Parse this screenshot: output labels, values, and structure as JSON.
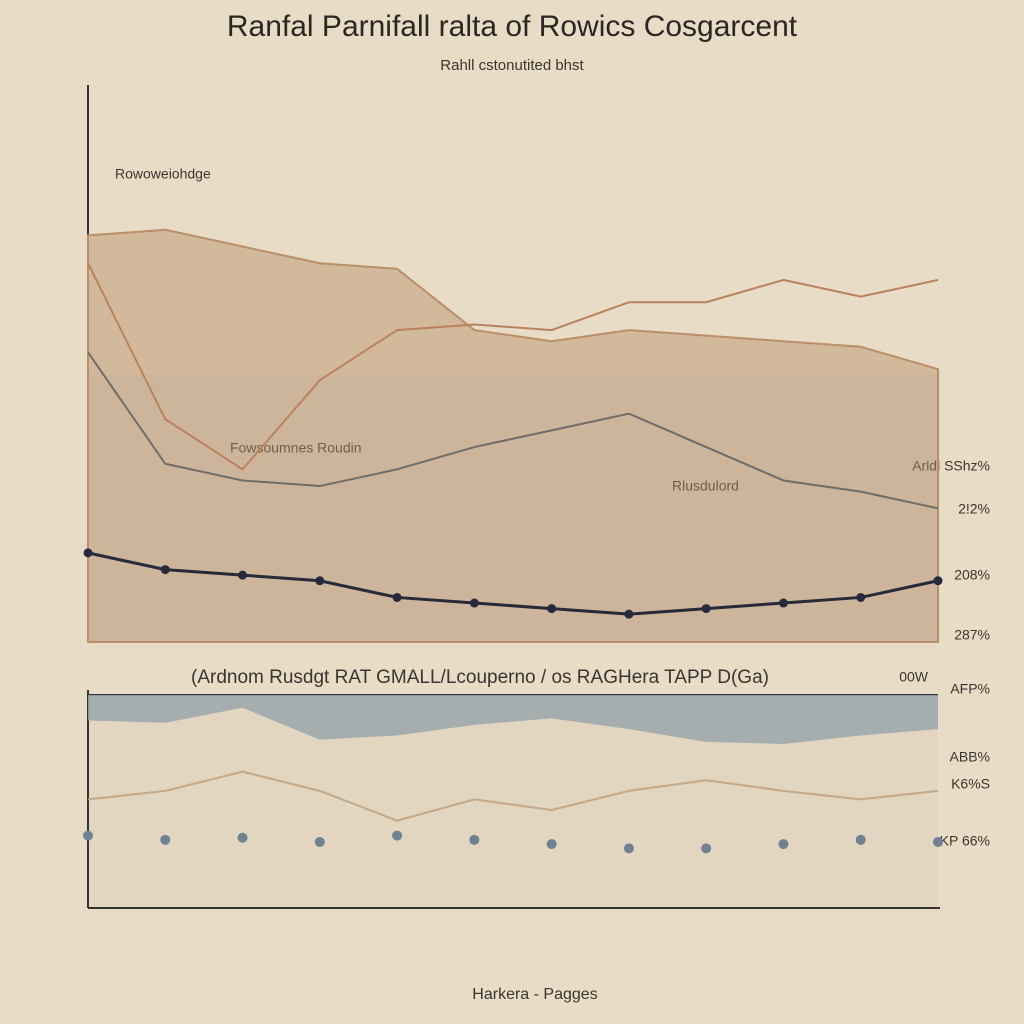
{
  "chart_data": [
    {
      "type": "line",
      "title": "Ranfal Parnifall ralta of Rowics Cosgarcent",
      "subtitle": "Rahll cstonutited bhst",
      "annotations": [
        "Rowoweiohdge",
        "Fowsoumnes Roudin",
        "Rlusdulord",
        "Arldl SShz%",
        "2!2%",
        "208%",
        "287%"
      ],
      "categories": [
        null,
        null,
        null,
        null,
        null,
        null,
        null,
        null,
        null,
        null,
        null,
        null
      ],
      "ylim": [
        0,
        100
      ],
      "series": [
        {
          "kind": "area",
          "color": "#b98f68",
          "values": [
            73,
            74,
            71,
            68,
            67,
            56,
            54,
            56,
            55,
            54,
            53,
            49
          ]
        },
        {
          "kind": "line",
          "color": "#b9825c",
          "values": [
            68,
            40,
            31,
            47,
            56,
            57,
            56,
            61,
            61,
            65,
            62,
            65
          ]
        },
        {
          "kind": "line",
          "color": "#6f6d6a",
          "values": [
            52,
            32,
            29,
            28,
            31,
            35,
            38,
            41,
            35,
            29,
            27,
            24
          ]
        },
        {
          "kind": "line",
          "color": "#262a3a",
          "values": [
            16,
            13,
            12,
            11,
            8,
            7,
            6,
            5,
            6,
            7,
            8,
            11
          ]
        }
      ]
    },
    {
      "type": "line",
      "title": "(Ardnom Rusdgt RAT GMALL/Lcouperno / os RAGHera TAPP D(Ga)",
      "xlabel": "Harkera - Pagges",
      "annotations": [
        "00W",
        "AFP%",
        "ABB%",
        "K6%S",
        "KP 66%"
      ],
      "categories": [
        null,
        null,
        null,
        null,
        null,
        null,
        null,
        null,
        null,
        null,
        null,
        null
      ],
      "ylim": [
        0,
        100
      ],
      "series": [
        {
          "kind": "band",
          "color": "#9aa6ab",
          "values": [
            88,
            87,
            94,
            79,
            81,
            86,
            89,
            84,
            78,
            77,
            81,
            84
          ]
        },
        {
          "kind": "line",
          "color": "#c4a888",
          "values": [
            51,
            55,
            64,
            55,
            41,
            51,
            46,
            55,
            60,
            55,
            51,
            55
          ]
        },
        {
          "kind": "dots",
          "color": "#6f8192",
          "values": [
            34,
            32,
            33,
            31,
            34,
            32,
            30,
            28,
            28,
            30,
            32,
            31
          ]
        }
      ]
    }
  ]
}
